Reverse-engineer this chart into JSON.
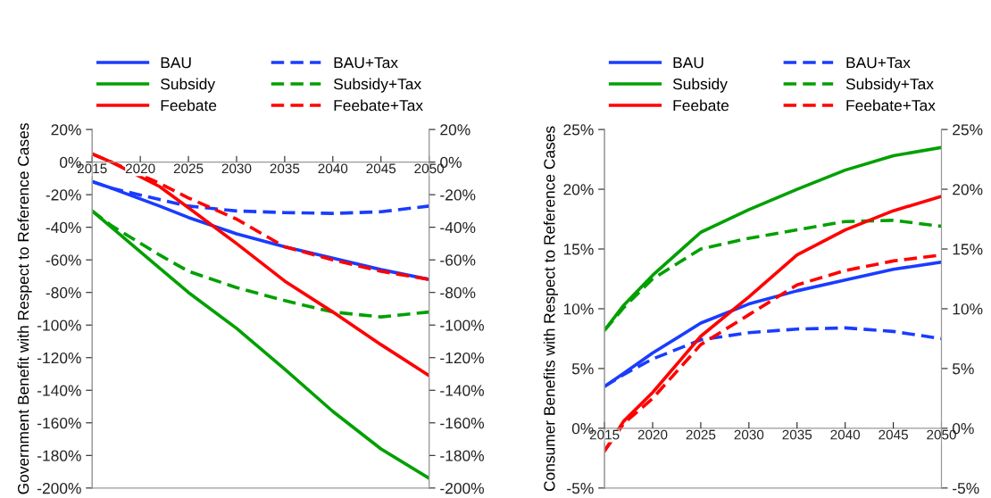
{
  "chart_data": [
    {
      "type": "line",
      "ylabel": "Government Benefit with Respect to Reference Cases",
      "x": [
        2015,
        2017,
        2022,
        2025,
        2030,
        2035,
        2040,
        2045,
        2050
      ],
      "xlim": [
        2015,
        2050
      ],
      "xticks": [
        2015,
        2020,
        2025,
        2030,
        2035,
        2040,
        2045,
        2050
      ],
      "ylim": [
        -200,
        20
      ],
      "yticks": [
        {
          "value": -200,
          "label": "-200%"
        },
        {
          "value": -180,
          "label": "-180%"
        },
        {
          "value": -160,
          "label": "-160%"
        },
        {
          "value": -140,
          "label": "-140%"
        },
        {
          "value": -120,
          "label": "-120%"
        },
        {
          "value": -100,
          "label": "-100%"
        },
        {
          "value": -80,
          "label": "-80%"
        },
        {
          "value": -60,
          "label": "-60%"
        },
        {
          "value": -40,
          "label": "-40%"
        },
        {
          "value": -20,
          "label": "-20%"
        },
        {
          "value": 0,
          "label": "0%"
        },
        {
          "value": 20,
          "label": "20%"
        }
      ],
      "y2lim": [
        -200,
        20
      ],
      "y2ticks": [
        {
          "value": -200,
          "label": "-200%"
        },
        {
          "value": -180,
          "label": "-180%"
        },
        {
          "value": -160,
          "label": "-160%"
        },
        {
          "value": -140,
          "label": "-140%"
        },
        {
          "value": -120,
          "label": "-120%"
        },
        {
          "value": -100,
          "label": "-100%"
        },
        {
          "value": -80,
          "label": "-80%"
        },
        {
          "value": -60,
          "label": "-60%"
        },
        {
          "value": -40,
          "label": "-40%"
        },
        {
          "value": -20,
          "label": "-20%"
        },
        {
          "value": 0,
          "label": "0%"
        },
        {
          "value": 20,
          "label": "20%"
        }
      ],
      "legend": "top",
      "grid": false,
      "marker": "none",
      "series": [
        {
          "name": "BAU",
          "color": "#1a3cff",
          "line_style": "solid",
          "values": [
            -12,
            -16,
            -27,
            -34,
            -44,
            -52,
            -59,
            -66,
            -72
          ]
        },
        {
          "name": "BAU+Tax",
          "color": "#1a3cff",
          "line_style": "dashed",
          "values": [
            -12,
            -16,
            -23,
            -27,
            -30,
            -31,
            -31.5,
            -30.5,
            -27
          ]
        },
        {
          "name": "Subsidy",
          "color": "#00a000",
          "line_style": "solid",
          "values": [
            -30,
            -40,
            -65,
            -80,
            -102,
            -127,
            -153,
            -176,
            -194
          ]
        },
        {
          "name": "Subsidy+Tax",
          "color": "#00a000",
          "line_style": "dashed",
          "values": [
            -30,
            -39,
            -57,
            -67,
            -77,
            -85,
            -92,
            -95,
            -92
          ]
        },
        {
          "name": "Feebate",
          "color": "#ff0000",
          "line_style": "solid",
          "values": [
            5,
            0,
            -15,
            -28,
            -50,
            -73,
            -92,
            -112,
            -131
          ]
        },
        {
          "name": "Feebate+Tax",
          "color": "#ff0000",
          "line_style": "dashed",
          "values": [
            5,
            0,
            -13,
            -22,
            -35,
            -52,
            -60,
            -67,
            -72
          ]
        }
      ]
    },
    {
      "type": "line",
      "ylabel": "Consumer Benefits with Respect to Reference Cases",
      "x": [
        2015,
        2017,
        2020,
        2025,
        2030,
        2035,
        2040,
        2045,
        2050
      ],
      "xlim": [
        2015,
        2050
      ],
      "xticks": [
        2015,
        2020,
        2025,
        2030,
        2035,
        2040,
        2045,
        2050
      ],
      "ylim": [
        -5,
        25
      ],
      "yticks": [
        {
          "value": -5,
          "label": "-5%"
        },
        {
          "value": 0,
          "label": "0%"
        },
        {
          "value": 5,
          "label": "5%"
        },
        {
          "value": 10,
          "label": "10%"
        },
        {
          "value": 15,
          "label": "15%"
        },
        {
          "value": 20,
          "label": "20%"
        },
        {
          "value": 25,
          "label": "25%"
        }
      ],
      "y2lim": [
        -5,
        25
      ],
      "y2ticks": [
        {
          "value": -5,
          "label": "-5%"
        },
        {
          "value": 0,
          "label": "0%"
        },
        {
          "value": 5,
          "label": "5%"
        },
        {
          "value": 10,
          "label": "10%"
        },
        {
          "value": 15,
          "label": "15%"
        },
        {
          "value": 20,
          "label": "20%"
        },
        {
          "value": 25,
          "label": "25%"
        }
      ],
      "legend": "top",
      "grid": false,
      "marker": "none",
      "series": [
        {
          "name": "BAU",
          "color": "#1a3cff",
          "line_style": "solid",
          "values": [
            3.5,
            4.6,
            6.3,
            8.8,
            10.4,
            11.5,
            12.4,
            13.3,
            13.9
          ]
        },
        {
          "name": "BAU+Tax",
          "color": "#1a3cff",
          "line_style": "dashed",
          "values": [
            3.5,
            4.5,
            5.8,
            7.4,
            8.0,
            8.3,
            8.4,
            8.1,
            7.5
          ]
        },
        {
          "name": "Subsidy",
          "color": "#00a000",
          "line_style": "solid",
          "values": [
            8.2,
            10.3,
            12.8,
            16.4,
            18.3,
            20.0,
            21.6,
            22.8,
            23.5
          ]
        },
        {
          "name": "Subsidy+Tax",
          "color": "#00a000",
          "line_style": "dashed",
          "values": [
            8.2,
            10.1,
            12.5,
            15.0,
            15.9,
            16.6,
            17.3,
            17.4,
            16.9
          ]
        },
        {
          "name": "Feebate",
          "color": "#ff0000",
          "line_style": "solid",
          "values": [
            -1.9,
            0.6,
            3.0,
            7.7,
            11.0,
            14.5,
            16.6,
            18.2,
            19.4
          ]
        },
        {
          "name": "Feebate+Tax",
          "color": "#ff0000",
          "line_style": "dashed",
          "values": [
            -1.9,
            0.4,
            2.5,
            7.0,
            9.5,
            12.0,
            13.2,
            14.0,
            14.5
          ]
        }
      ]
    }
  ]
}
